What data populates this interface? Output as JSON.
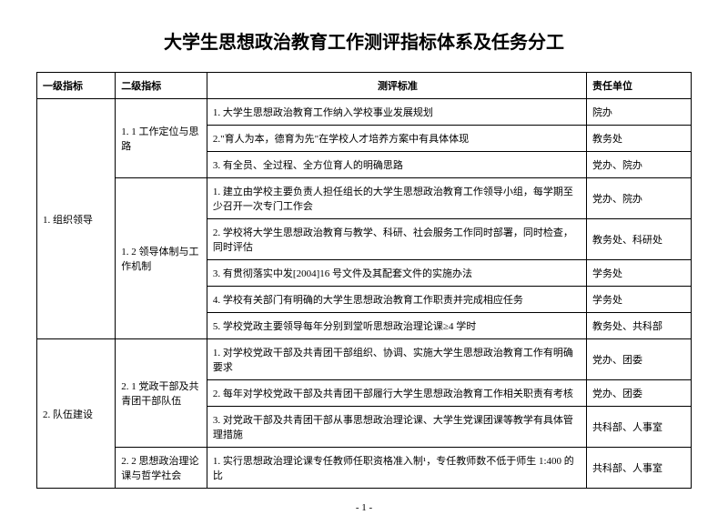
{
  "title": "大学生思想政治教育工作测评指标体系及任务分工",
  "headers": {
    "col1": "一级指标",
    "col2": "二级指标",
    "col3": "测评标准",
    "col4": "责任单位"
  },
  "rows": [
    {
      "level1": "1. 组织领导",
      "level2": "1. 1 工作定位与思路",
      "criteria": "1. 大学生思想政治教育工作纳入学校事业发展规划",
      "unit": "院办"
    },
    {
      "criteria": "2.\"育人为本，德育为先\"在学校人才培养方案中有具体体现",
      "unit": "教务处"
    },
    {
      "criteria": "3. 有全员、全过程、全方位育人的明确思路",
      "unit": "党办、院办"
    },
    {
      "level2": "1. 2 领导体制与工作机制",
      "criteria": "1. 建立由学校主要负责人担任组长的大学生思想政治教育工作领导小组，每学期至少召开一次专门工作会",
      "unit": "党办、院办"
    },
    {
      "criteria": "2. 学校将大学生思想政治教育与教学、科研、社会服务工作同时部署，同时检查，同时评估",
      "unit": "教务处、科研处"
    },
    {
      "criteria": "3. 有贯彻落实中发[2004]16 号文件及其配套文件的实施办法",
      "unit": "学务处"
    },
    {
      "criteria": "4. 学校有关部门有明确的大学生思想政治教育工作职责并完成相应任务",
      "unit": "学务处"
    },
    {
      "criteria": "5. 学校党政主要领导每年分别到堂听思想政治理论课≥4 学时",
      "unit": "教务处、共科部"
    },
    {
      "level1": "2. 队伍建设",
      "level2": "2. 1 党政干部及共青团干部队伍",
      "criteria": "1. 对学校党政干部及共青团干部组织、协调、实施大学生思想政治教育工作有明确要求",
      "unit": "党办、团委"
    },
    {
      "criteria": "2. 每年对学校党政干部及共青团干部履行大学生思想政治教育工作相关职责有考核",
      "unit": "党办、团委"
    },
    {
      "criteria": "3. 对党政干部及共青团干部从事思想政治理论课、大学生党课团课等教学有具体管理措施",
      "unit": "共科部、人事室"
    },
    {
      "level2": "2. 2 思想政治理论课与哲学社会",
      "criteria": "1. 实行思想政治理论课专任教师任职资格准入制¹，专任教师数不低于师生 1:400 的比",
      "unit": "共科部、人事室"
    }
  ],
  "page_number": "- 1 -"
}
